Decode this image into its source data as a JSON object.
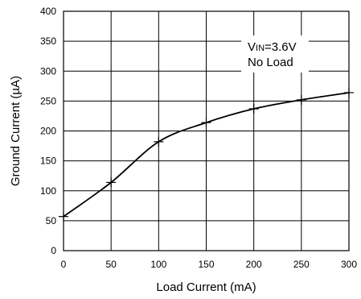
{
  "chart_data": {
    "type": "line",
    "xlabel": "Load Current (mA)",
    "ylabel": "Ground Current (µA)",
    "xlim": [
      0,
      300
    ],
    "ylim": [
      0,
      400
    ],
    "x_ticks": [
      0,
      50,
      100,
      150,
      200,
      250,
      300
    ],
    "y_ticks": [
      0,
      50,
      100,
      150,
      200,
      250,
      300,
      350,
      400
    ],
    "grid": true,
    "annotation": {
      "line1_prefix": "V",
      "line1_sub": "IN",
      "line1_suffix": "=3.6V",
      "line2": "No Load"
    },
    "series": [
      {
        "x": [
          0,
          50,
          100,
          150,
          200,
          250,
          300
        ],
        "y": [
          57,
          114,
          182,
          214,
          237,
          252,
          264
        ],
        "markers": [
          0,
          50,
          100,
          150,
          200,
          250,
          300
        ],
        "color": "#000000"
      }
    ]
  }
}
